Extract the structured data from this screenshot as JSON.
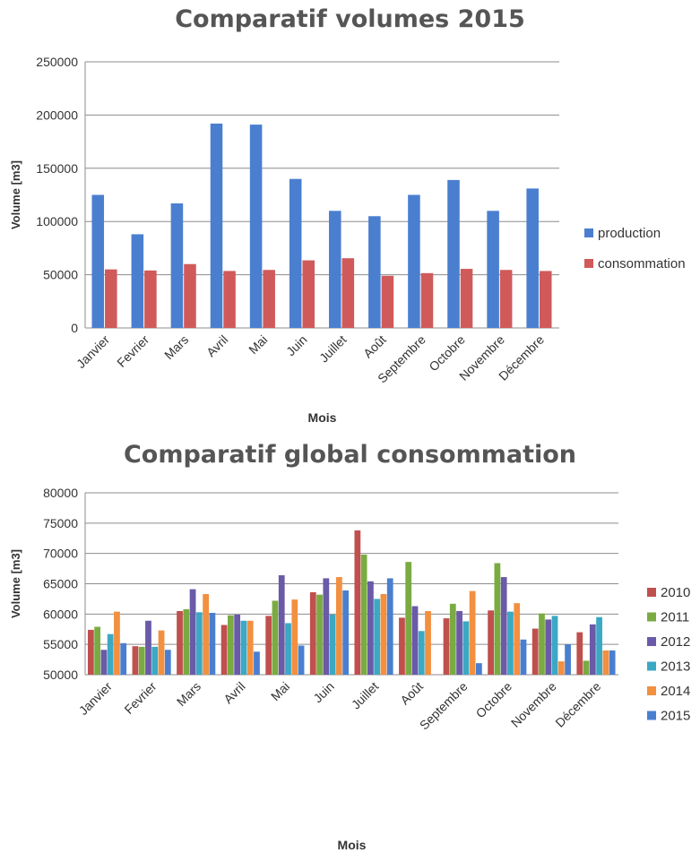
{
  "chart_data": [
    {
      "type": "bar",
      "title": "Comparatif volumes 2015",
      "xlabel": "Mois",
      "ylabel": "Volume  [m3]",
      "ylim": [
        0,
        250000
      ],
      "yticks": [
        "0",
        "50000",
        "100000",
        "150000",
        "200000",
        "250000"
      ],
      "categories": [
        "Janvier",
        "Fevrier",
        "Mars",
        "Avril",
        "Mai",
        "Juin",
        "Juillet",
        "Août",
        "Septembre",
        "Octobre",
        "Novembre",
        "Décembre"
      ],
      "series": [
        {
          "name": "production",
          "color": "#4a7fd0",
          "values": [
            125000,
            88000,
            117000,
            192000,
            191000,
            140000,
            110000,
            105000,
            125000,
            139000,
            110000,
            131000
          ]
        },
        {
          "name": "consommation",
          "color": "#d05a5a",
          "values": [
            55000,
            54000,
            60000,
            53500,
            54500,
            63500,
            65500,
            49000,
            51500,
            55500,
            54500,
            53500
          ]
        }
      ],
      "grid": true,
      "legend": "right"
    },
    {
      "type": "bar",
      "title": "Comparatif global consommation",
      "xlabel": "Mois",
      "ylabel": "Volume  [m3]",
      "ylim": [
        50000,
        80000
      ],
      "yticks": [
        "50000",
        "55000",
        "60000",
        "65000",
        "70000",
        "75000",
        "80000"
      ],
      "categories": [
        "Janvier",
        "Fevrier",
        "Mars",
        "Avril",
        "Mai",
        "Juin",
        "Juillet",
        "Août",
        "Septembre",
        "Octobre",
        "Novembre",
        "Décembre"
      ],
      "series": [
        {
          "name": "2010",
          "color": "#c0504d",
          "values": [
            57400,
            54700,
            60500,
            58200,
            59700,
            63600,
            73800,
            59400,
            59300,
            60600,
            57600,
            57000
          ]
        },
        {
          "name": "2011",
          "color": "#7aab42",
          "values": [
            57900,
            54600,
            60800,
            59800,
            62200,
            63200,
            69800,
            68600,
            61700,
            68400,
            60100,
            52300
          ]
        },
        {
          "name": "2012",
          "color": "#6a5aa8",
          "values": [
            54100,
            58900,
            64100,
            59900,
            66400,
            65900,
            65400,
            61300,
            60500,
            66100,
            59100,
            58300
          ]
        },
        {
          "name": "2013",
          "color": "#3ba8c4",
          "values": [
            56700,
            54600,
            60300,
            58900,
            58500,
            59900,
            62500,
            57200,
            58800,
            60400,
            59700,
            59500
          ]
        },
        {
          "name": "2014",
          "color": "#f29040",
          "values": [
            60400,
            57300,
            63300,
            58900,
            62400,
            66100,
            63300,
            60500,
            63800,
            61800,
            52200,
            54000
          ]
        },
        {
          "name": "2015",
          "color": "#4a7fd0",
          "values": [
            55200,
            54100,
            60200,
            53800,
            54800,
            63900,
            65900,
            50000,
            51900,
            55800,
            55000,
            54000
          ]
        }
      ],
      "grid": true,
      "legend": "right"
    }
  ]
}
